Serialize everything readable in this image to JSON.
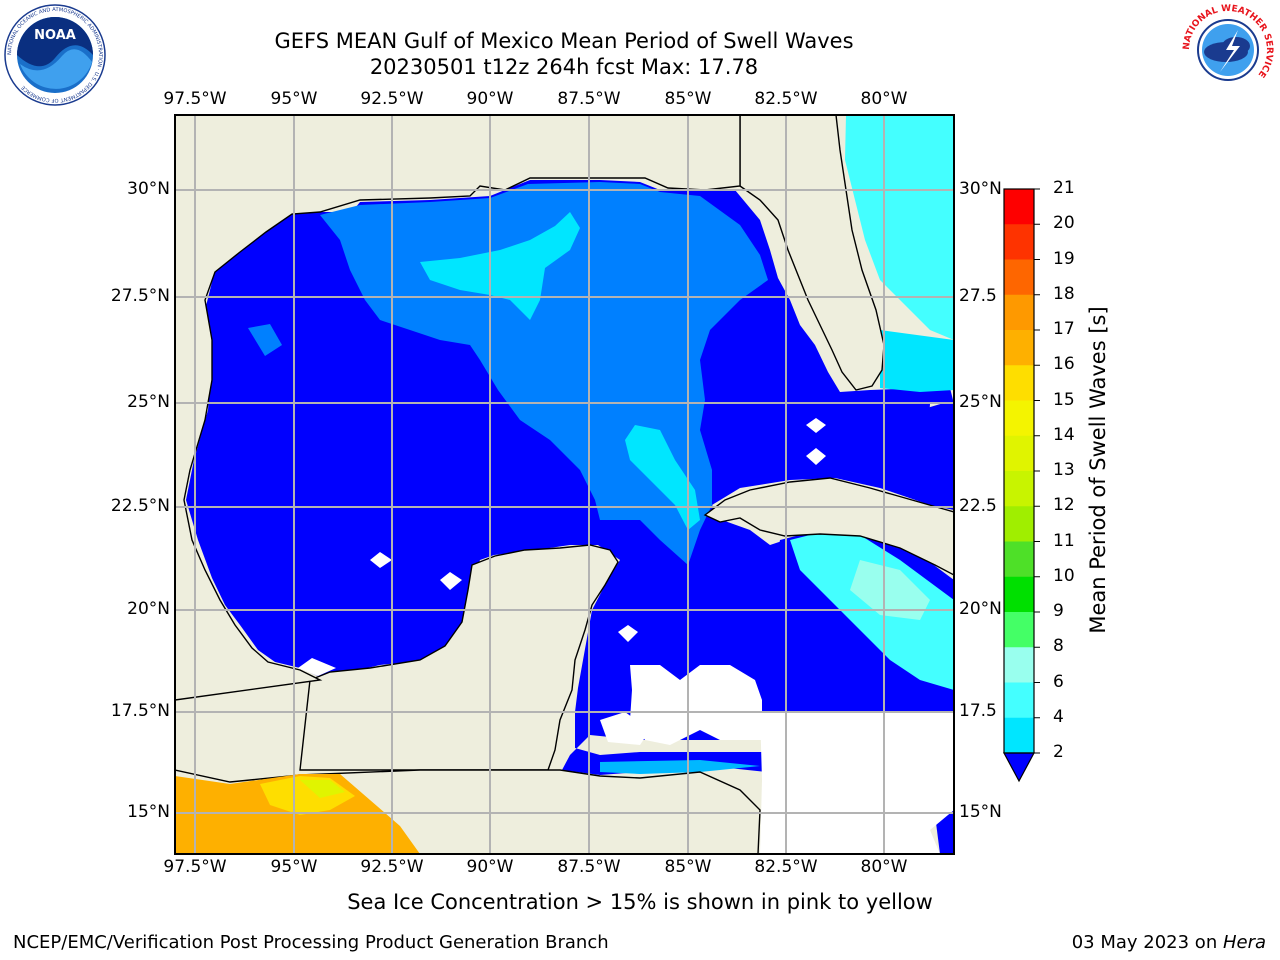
{
  "title": {
    "line1": "GEFS MEAN Gulf of Mexico Mean Period of Swell Waves",
    "line2": "20230501 t12z 264h fcst   Max: 17.78"
  },
  "map": {
    "lon_labels": [
      "97.5°W",
      "95°W",
      "92.5°W",
      "90°W",
      "87.5°W",
      "85°W",
      "82.5°W",
      "80°W"
    ],
    "lat_labels_left": [
      "30°N",
      "27.5°N",
      "25°N",
      "22.5°N",
      "20°N",
      "17.5°N",
      "15°N"
    ],
    "lat_labels_right": [
      "30°N",
      "27.5",
      "25°N",
      "22.5",
      "20°N",
      "17.5",
      "15°N"
    ],
    "land_color": "#eeeedd",
    "grid": true
  },
  "colorbar": {
    "label": "Mean Period of Swell Waves [s]",
    "ticks": [
      "21",
      "20",
      "19",
      "18",
      "17",
      "16",
      "15",
      "14",
      "13",
      "12",
      "11",
      "10",
      "9",
      "8",
      "6",
      "4",
      "2"
    ],
    "colors": [
      "#fe0000",
      "#fe3300",
      "#fe6600",
      "#fe9900",
      "#feb000",
      "#fede00",
      "#f4f400",
      "#e0f400",
      "#c8f400",
      "#a0ee00",
      "#4ee028",
      "#00e000",
      "#44ff66",
      "#99ffee",
      "#44ffff",
      "#00e6ff",
      "#0080ff",
      "#0000ff"
    ]
  },
  "note": "Sea Ice Concentration > 15% is shown in pink to yellow",
  "footer": {
    "left": "NCEP/EMC/Verification Post Processing Product Generation Branch",
    "date": "03 May 2023 on ",
    "machine": "Hera"
  },
  "logos": {
    "noaa": "NOAA",
    "noaa_ring": "NATIONAL OCEANIC AND ATMOSPHERIC ADMINISTRATION · U.S. DEPARTMENT OF COMMERCE",
    "nws_ring": "NATIONAL WEATHER SERVICE"
  }
}
